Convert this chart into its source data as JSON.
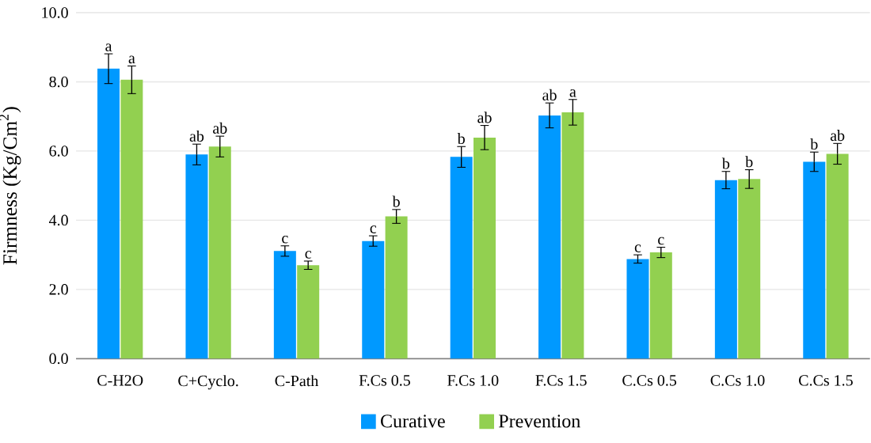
{
  "chart_data": {
    "type": "bar",
    "ylabel": "Firmness (Kg/Cm$^{2}$)",
    "categories": [
      "C-H2O",
      "C+Cyclo.",
      "C-Path",
      "F.Cs 0.5",
      "F.Cs 1.0",
      "F.Cs 1.5",
      "C.Cs 0.5",
      "C.Cs 1.0",
      "C.Cs 1.5"
    ],
    "series": [
      {
        "name": "Curative",
        "color": "#0099ff",
        "values": [
          8.38,
          5.9,
          3.11,
          3.4,
          5.83,
          7.03,
          2.88,
          5.16,
          5.69
        ],
        "errors": [
          0.43,
          0.3,
          0.15,
          0.15,
          0.3,
          0.36,
          0.12,
          0.25,
          0.28
        ],
        "value_labels": [
          "a",
          "ab",
          "c",
          "c",
          "b",
          "ab",
          "c",
          "b",
          "b"
        ]
      },
      {
        "name": "Prevention",
        "color": "#92d050",
        "values": [
          8.06,
          6.13,
          2.7,
          4.11,
          6.39,
          7.12,
          3.07,
          5.19,
          5.92
        ],
        "errors": [
          0.4,
          0.3,
          0.12,
          0.2,
          0.35,
          0.37,
          0.15,
          0.27,
          0.3
        ],
        "value_labels": [
          "a",
          "ab",
          "c",
          "b",
          "ab",
          "a",
          "c",
          "b",
          "ab"
        ]
      }
    ],
    "ylim": [
      0,
      10
    ],
    "yticks": [
      {
        "value": 0,
        "label": "0.0"
      },
      {
        "value": 2,
        "label": "2.0"
      },
      {
        "value": 4,
        "label": "4.0"
      },
      {
        "value": 6,
        "label": "6.0"
      },
      {
        "value": 8,
        "label": "8.0"
      },
      {
        "value": 10,
        "label": "10.0"
      }
    ],
    "grid": "y",
    "legend": "bottom"
  }
}
